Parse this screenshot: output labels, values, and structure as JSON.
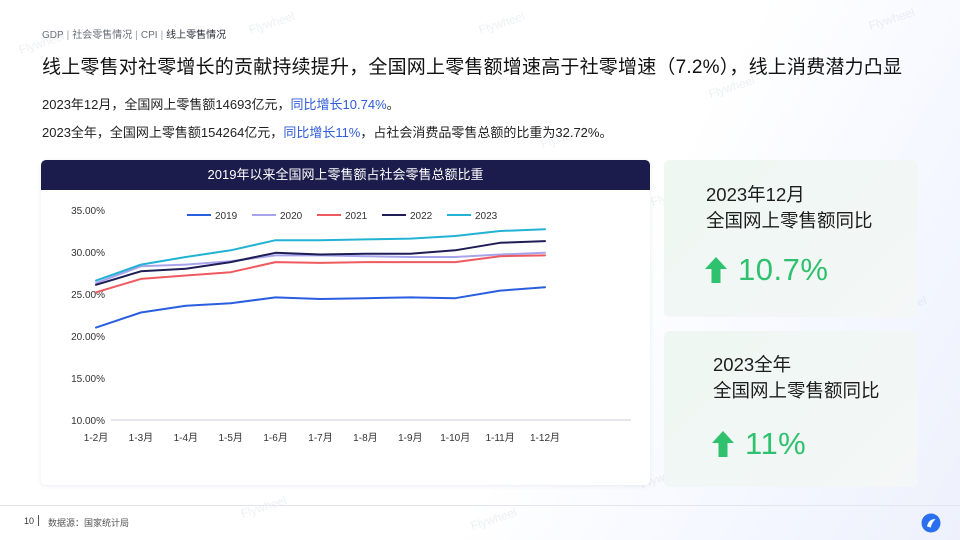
{
  "breadcrumb": {
    "items": [
      "GDP",
      "社会零售情况",
      "CPI"
    ],
    "active": "线上零售情况"
  },
  "headline": "线上零售对社零增长的贡献持续提升，全国网上零售额增速高于社零增速（7.2%），线上消费潜力凸显",
  "summary": {
    "line1_text": "2023年12月，全国网上零售额14693亿元，",
    "line1_highlight": "同比增长10.74%",
    "line1_end": "。",
    "line2_text": "2023全年，全国网上零售额154264亿元，",
    "line2_highlight": "同比增长11%",
    "line2_end": "，占社会消费品零售总额的比重为32.72%。"
  },
  "chart_data": {
    "type": "line",
    "title": "2019年以来全国网上零售额占社会零售总额比重",
    "categories": [
      "1-2月",
      "1-3月",
      "1-4月",
      "1-5月",
      "1-6月",
      "1-7月",
      "1-8月",
      "1-9月",
      "1-10月",
      "1-11月",
      "1-12月"
    ],
    "ylim": [
      10,
      35
    ],
    "yticks": [
      "10.00%",
      "15.00%",
      "20.00%",
      "25.00%",
      "30.00%",
      "35.00%"
    ],
    "ytick_values": [
      10,
      15,
      20,
      25,
      30,
      35
    ],
    "legend_position": "top-center",
    "series": [
      {
        "name": "2019",
        "color": "#2a5ee0",
        "values": [
          21.0,
          22.8,
          23.6,
          23.9,
          24.6,
          24.4,
          24.5,
          24.6,
          24.5,
          25.4,
          25.8
        ]
      },
      {
        "name": "2020",
        "color": "#a8a4ec",
        "values": [
          26.3,
          28.3,
          28.5,
          28.9,
          29.6,
          29.6,
          29.5,
          29.4,
          29.4,
          29.7,
          29.9
        ]
      },
      {
        "name": "2021",
        "color": "#ee5a5f",
        "values": [
          25.2,
          26.8,
          27.2,
          27.6,
          28.8,
          28.7,
          28.8,
          28.8,
          28.8,
          29.5,
          29.6
        ]
      },
      {
        "name": "2022",
        "color": "#1f1d55",
        "values": [
          26.1,
          27.7,
          28.0,
          28.8,
          29.9,
          29.7,
          29.8,
          29.8,
          30.2,
          31.1,
          31.3
        ]
      },
      {
        "name": "2023",
        "color": "#22b2d4",
        "values": [
          26.6,
          28.5,
          29.4,
          30.2,
          31.4,
          31.4,
          31.5,
          31.6,
          31.9,
          32.5,
          32.7
        ]
      }
    ]
  },
  "kpis": [
    {
      "title_line1": "2023年12月",
      "title_line2": "全国网上零售额同比",
      "value": "10.7%",
      "icon": "up-arrow-icon"
    },
    {
      "title_line1": "2023全年",
      "title_line2": "全国网上零售额同比",
      "value": "11%",
      "icon": "up-arrow-icon"
    }
  ],
  "footer": {
    "page_number": "10",
    "source": "数据源：国家统计局"
  },
  "watermark": "Flywheel",
  "colors": {
    "accent_blue": "#2f5bd8",
    "header_navy": "#1c1c4c",
    "kpi_green": "#2fc16d"
  }
}
